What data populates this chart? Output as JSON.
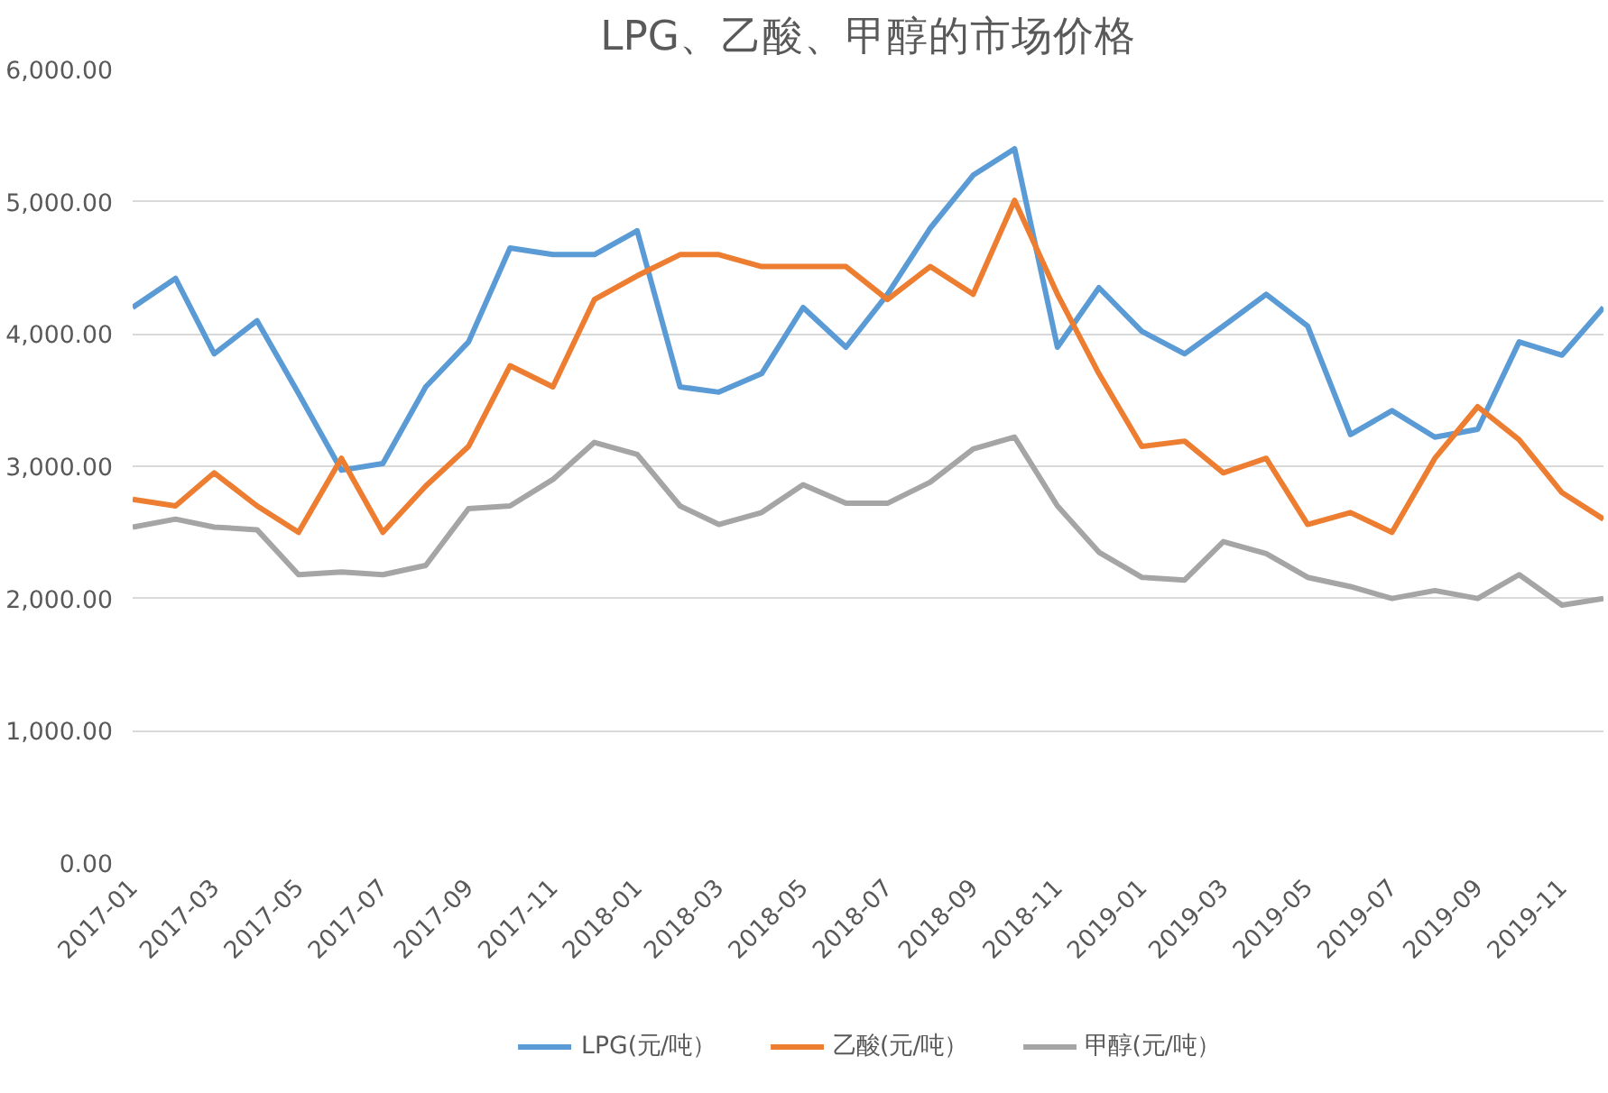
{
  "chart_data": {
    "type": "line",
    "title": "LPG、乙酸、甲醇的市场价格",
    "x": [
      "2017-01",
      "2017-02",
      "2017-03",
      "2017-04",
      "2017-05",
      "2017-06",
      "2017-07",
      "2017-08",
      "2017-09",
      "2017-10",
      "2017-11",
      "2017-12",
      "2018-01",
      "2018-02",
      "2018-03",
      "2018-04",
      "2018-05",
      "2018-06",
      "2018-07",
      "2018-08",
      "2018-09",
      "2018-10",
      "2018-11",
      "2018-12",
      "2019-01",
      "2019-02",
      "2019-03",
      "2019-04",
      "2019-05",
      "2019-06",
      "2019-07",
      "2019-08",
      "2019-09",
      "2019-10",
      "2019-11",
      "2019-12"
    ],
    "series": [
      {
        "name": "LPG(元/吨）",
        "color": "#5b9bd5",
        "values": [
          4200,
          4420,
          3850,
          4100,
          3550,
          2970,
          3020,
          3600,
          3940,
          4650,
          4600,
          4600,
          4780,
          3600,
          3560,
          3700,
          4200,
          3900,
          4300,
          4800,
          5200,
          5400,
          3900,
          4350,
          4020,
          3850,
          4060,
          4300,
          4060,
          3240,
          3420,
          3220,
          3280,
          3940,
          3840,
          4200
        ]
      },
      {
        "name": "乙酸(元/吨）",
        "color": "#ed7d31",
        "values": [
          2750,
          2700,
          2950,
          2700,
          2500,
          3060,
          2500,
          2850,
          3150,
          3760,
          3600,
          4260,
          4440,
          4600,
          4600,
          4510,
          4510,
          4510,
          4260,
          4510,
          4300,
          5010,
          4300,
          3700,
          3150,
          3190,
          2950,
          3060,
          2560,
          2650,
          2500,
          3060,
          3450,
          3200,
          2800,
          2600
        ]
      },
      {
        "name": "甲醇(元/吨）",
        "color": "#a5a5a5",
        "values": [
          2540,
          2600,
          2540,
          2520,
          2180,
          2200,
          2180,
          2250,
          2680,
          2700,
          2900,
          3180,
          3090,
          2700,
          2560,
          2650,
          2860,
          2720,
          2720,
          2880,
          3130,
          3220,
          2700,
          2350,
          2160,
          2140,
          2430,
          2340,
          2160,
          2090,
          2000,
          2060,
          2000,
          2180,
          1950,
          2000
        ]
      }
    ],
    "xlim": [
      "2017-01",
      "2019-12"
    ],
    "xticks": [
      "2017-01",
      "2017-03",
      "2017-05",
      "2017-07",
      "2017-09",
      "2017-11",
      "2018-01",
      "2018-03",
      "2018-05",
      "2018-07",
      "2018-09",
      "2018-11",
      "2019-01",
      "2019-03",
      "2019-05",
      "2019-07",
      "2019-09",
      "2019-11"
    ],
    "ylim": [
      0,
      6000
    ],
    "yticks": [
      {
        "value": 0,
        "label": "0.00"
      },
      {
        "value": 1000,
        "label": "1,000.00"
      },
      {
        "value": 2000,
        "label": "2,000.00"
      },
      {
        "value": 3000,
        "label": "3,000.00"
      },
      {
        "value": 4000,
        "label": "4,000.00"
      },
      {
        "value": 5000,
        "label": "5,000.00"
      },
      {
        "value": 6000,
        "label": "6,000.00"
      }
    ],
    "grid": "y",
    "legend": "bottom",
    "marker": "none",
    "line_style": "solid"
  }
}
